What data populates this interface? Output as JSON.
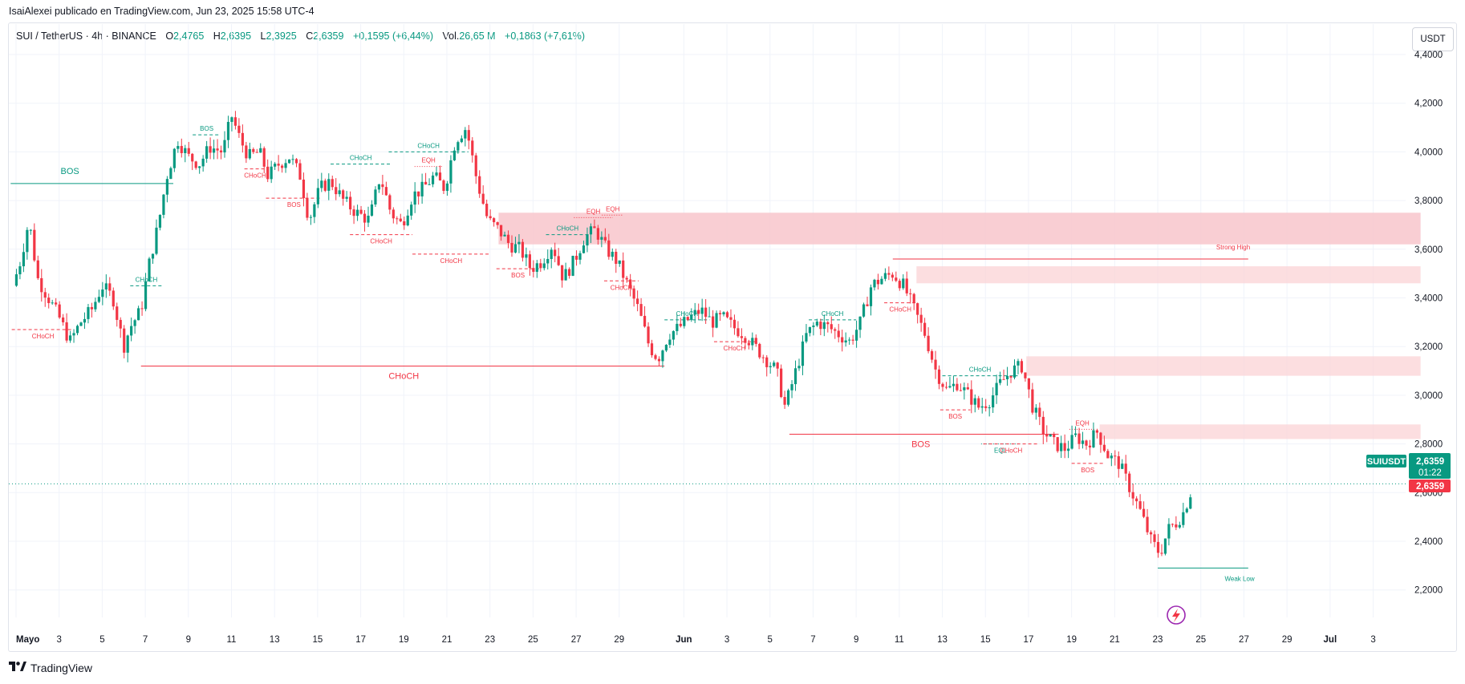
{
  "header": {
    "credit": "IsaiAlexei publicado en TradingView.com, Jun 23, 2025 15:58 UTC-4"
  },
  "legend": {
    "symbol": "SUI / TetherUS · 4h · BINANCE",
    "o_label": "O",
    "o_value": "2,4765",
    "h_label": "H",
    "h_value": "2,6395",
    "l_label": "L",
    "l_value": "2,3925",
    "c_label": "C",
    "c_value": "2,6359",
    "change": "+0,1595 (+6,44%)",
    "vol_label": "Vol.",
    "vol_value": "26,65 M",
    "vol_change": "+0,1863 (+7,61%)"
  },
  "currency_button": "USDT",
  "footer": {
    "brand": "TradingView",
    "logo_icon": "tradingview-logo-icon"
  },
  "colors": {
    "up": "#089981",
    "down": "#f23645",
    "zone": "#f8c6cb",
    "grid": "#f0f3fa"
  },
  "chart_data": {
    "type": "candlestick",
    "symbol": "SUIUSDT",
    "interval": "4h",
    "ylim": [
      2.1,
      4.45
    ],
    "y_ticks": [
      {
        "v": 4.4,
        "label": "4,4000"
      },
      {
        "v": 4.2,
        "label": "4,2000"
      },
      {
        "v": 4.0,
        "label": "4,0000"
      },
      {
        "v": 3.8,
        "label": "3,8000"
      },
      {
        "v": 3.6,
        "label": "3,6000"
      },
      {
        "v": 3.4,
        "label": "3,4000"
      },
      {
        "v": 3.2,
        "label": "3,2000"
      },
      {
        "v": 3.0,
        "label": "3,0000"
      },
      {
        "v": 2.8,
        "label": "2,8000"
      },
      {
        "v": 2.6,
        "label": "2,6000"
      },
      {
        "v": 2.4,
        "label": "2,4000"
      },
      {
        "v": 2.2,
        "label": "2,2000"
      }
    ],
    "x_ticks": [
      {
        "d": 1,
        "label": "Mayo",
        "bold": true
      },
      {
        "d": 3,
        "label": "3"
      },
      {
        "d": 5,
        "label": "5"
      },
      {
        "d": 7,
        "label": "7"
      },
      {
        "d": 9,
        "label": "9"
      },
      {
        "d": 11,
        "label": "11"
      },
      {
        "d": 13,
        "label": "13"
      },
      {
        "d": 15,
        "label": "15"
      },
      {
        "d": 17,
        "label": "17"
      },
      {
        "d": 19,
        "label": "19"
      },
      {
        "d": 21,
        "label": "21"
      },
      {
        "d": 23,
        "label": "23"
      },
      {
        "d": 25,
        "label": "25"
      },
      {
        "d": 27,
        "label": "27"
      },
      {
        "d": 29,
        "label": "29"
      },
      {
        "d": 32,
        "label": "Jun",
        "bold": true
      },
      {
        "d": 34,
        "label": "3"
      },
      {
        "d": 36,
        "label": "5"
      },
      {
        "d": 38,
        "label": "7"
      },
      {
        "d": 40,
        "label": "9"
      },
      {
        "d": 42,
        "label": "11"
      },
      {
        "d": 44,
        "label": "13"
      },
      {
        "d": 46,
        "label": "15"
      },
      {
        "d": 48,
        "label": "17"
      },
      {
        "d": 50,
        "label": "19"
      },
      {
        "d": 52,
        "label": "21"
      },
      {
        "d": 54,
        "label": "23"
      },
      {
        "d": 56,
        "label": "25"
      },
      {
        "d": 58,
        "label": "27"
      },
      {
        "d": 60,
        "label": "29"
      },
      {
        "d": 62,
        "label": "Jul",
        "bold": true
      },
      {
        "d": 64,
        "label": "3"
      }
    ],
    "price_path": [
      [
        0.85,
        3.45
      ],
      [
        1.2,
        3.55
      ],
      [
        1.6,
        3.72
      ],
      [
        2.0,
        3.48
      ],
      [
        2.5,
        3.4
      ],
      [
        3.0,
        3.32
      ],
      [
        3.5,
        3.22
      ],
      [
        4.0,
        3.3
      ],
      [
        4.5,
        3.35
      ],
      [
        5.0,
        3.45
      ],
      [
        5.5,
        3.4
      ],
      [
        6.0,
        3.2
      ],
      [
        6.3,
        3.28
      ],
      [
        6.8,
        3.35
      ],
      [
        7.2,
        3.55
      ],
      [
        7.6,
        3.7
      ],
      [
        8.0,
        3.9
      ],
      [
        8.5,
        4.05
      ],
      [
        9.0,
        3.98
      ],
      [
        9.5,
        3.95
      ],
      [
        10.0,
        4.02
      ],
      [
        10.6,
        4.0
      ],
      [
        11.0,
        4.15
      ],
      [
        11.4,
        4.05
      ],
      [
        11.8,
        3.98
      ],
      [
        12.3,
        4.0
      ],
      [
        12.7,
        3.9
      ],
      [
        13.2,
        3.95
      ],
      [
        13.7,
        3.98
      ],
      [
        14.2,
        3.9
      ],
      [
        14.6,
        3.72
      ],
      [
        15.1,
        3.85
      ],
      [
        15.6,
        3.88
      ],
      [
        16.2,
        3.8
      ],
      [
        16.8,
        3.75
      ],
      [
        17.4,
        3.72
      ],
      [
        17.9,
        3.9
      ],
      [
        18.4,
        3.75
      ],
      [
        18.9,
        3.7
      ],
      [
        19.4,
        3.82
      ],
      [
        19.9,
        3.85
      ],
      [
        20.4,
        3.9
      ],
      [
        20.9,
        3.85
      ],
      [
        21.4,
        4.05
      ],
      [
        21.9,
        4.1
      ],
      [
        22.4,
        3.88
      ],
      [
        22.9,
        3.72
      ],
      [
        23.4,
        3.68
      ],
      [
        23.9,
        3.62
      ],
      [
        24.4,
        3.6
      ],
      [
        24.9,
        3.52
      ],
      [
        25.4,
        3.55
      ],
      [
        25.9,
        3.62
      ],
      [
        26.4,
        3.48
      ],
      [
        26.9,
        3.55
      ],
      [
        27.4,
        3.65
      ],
      [
        27.9,
        3.68
      ],
      [
        28.4,
        3.6
      ],
      [
        28.9,
        3.55
      ],
      [
        29.4,
        3.45
      ],
      [
        29.9,
        3.35
      ],
      [
        30.4,
        3.2
      ],
      [
        30.8,
        3.15
      ],
      [
        31.3,
        3.25
      ],
      [
        31.8,
        3.28
      ],
      [
        32.3,
        3.32
      ],
      [
        32.8,
        3.35
      ],
      [
        33.3,
        3.3
      ],
      [
        33.8,
        3.32
      ],
      [
        34.3,
        3.28
      ],
      [
        34.8,
        3.25
      ],
      [
        35.3,
        3.2
      ],
      [
        35.8,
        3.15
      ],
      [
        36.3,
        3.1
      ],
      [
        36.7,
        2.95
      ],
      [
        37.2,
        3.1
      ],
      [
        37.7,
        3.25
      ],
      [
        38.2,
        3.3
      ],
      [
        38.7,
        3.28
      ],
      [
        39.2,
        3.25
      ],
      [
        39.7,
        3.22
      ],
      [
        40.2,
        3.3
      ],
      [
        40.7,
        3.45
      ],
      [
        41.2,
        3.48
      ],
      [
        41.7,
        3.5
      ],
      [
        42.2,
        3.45
      ],
      [
        42.7,
        3.35
      ],
      [
        43.2,
        3.25
      ],
      [
        43.7,
        3.1
      ],
      [
        44.2,
        3.02
      ],
      [
        44.7,
        3.05
      ],
      [
        45.2,
        3.0
      ],
      [
        45.7,
        2.95
      ],
      [
        46.2,
        2.98
      ],
      [
        46.7,
        3.05
      ],
      [
        47.2,
        3.1
      ],
      [
        47.7,
        3.12
      ],
      [
        48.2,
        2.95
      ],
      [
        48.7,
        2.85
      ],
      [
        49.2,
        2.8
      ],
      [
        49.7,
        2.78
      ],
      [
        50.2,
        2.83
      ],
      [
        50.7,
        2.8
      ],
      [
        51.2,
        2.85
      ],
      [
        51.7,
        2.75
      ],
      [
        52.2,
        2.72
      ],
      [
        52.7,
        2.62
      ],
      [
        53.2,
        2.52
      ],
      [
        53.7,
        2.4
      ],
      [
        54.1,
        2.35
      ],
      [
        54.5,
        2.45
      ],
      [
        54.9,
        2.48
      ],
      [
        55.2,
        2.52
      ],
      [
        55.6,
        2.62
      ]
    ],
    "zones": [
      {
        "x1": 23.4,
        "x2": 66.2,
        "y1": 3.62,
        "y2": 3.75
      },
      {
        "x1": 42.8,
        "x2": 66.2,
        "y1": 3.46,
        "y2": 3.53
      },
      {
        "x1": 47.9,
        "x2": 66.2,
        "y1": 3.08,
        "y2": 3.16
      },
      {
        "x1": 51.3,
        "x2": 66.2,
        "y1": 2.82,
        "y2": 2.88
      }
    ],
    "levels": [
      {
        "label": "BOS",
        "color": "#089981",
        "style": "solid",
        "x1": 0.75,
        "x2": 8.3,
        "y": 3.87,
        "label_x": 3.5,
        "label_pos": "above"
      },
      {
        "label": "CHoCH",
        "color": "#f23645",
        "style": "solid",
        "x1": 6.8,
        "x2": 31.1,
        "y": 3.12,
        "label_x": 19.0,
        "label_pos": "below"
      },
      {
        "label": "BOS",
        "color": "#f23645",
        "style": "solid",
        "x1": 36.9,
        "x2": 49.4,
        "y": 2.84,
        "label_x": 43.0,
        "label_pos": "below"
      },
      {
        "label": "Strong High",
        "color": "#f23645",
        "style": "solid",
        "x1": 41.7,
        "x2": 58.2,
        "y": 3.56,
        "label_x": 57.5,
        "label_pos": "above",
        "small": true
      },
      {
        "label": "Weak Low",
        "color": "#089981",
        "style": "solid",
        "x1": 54.0,
        "x2": 58.2,
        "y": 2.29,
        "label_x": 57.8,
        "label_pos": "below",
        "small": true
      }
    ],
    "small_marks": [
      {
        "label": "CHoCH",
        "color": "#f23645",
        "x1": 0.8,
        "x2": 3.7,
        "y": 3.27,
        "label_pos": "below"
      },
      {
        "label": "CHoCH",
        "color": "#089981",
        "x1": 6.3,
        "x2": 7.8,
        "y": 3.45,
        "label_pos": "above"
      },
      {
        "label": "BOS",
        "color": "#089981",
        "x1": 9.2,
        "x2": 10.5,
        "y": 4.07,
        "label_pos": "above"
      },
      {
        "label": "CHoCH",
        "color": "#f23645",
        "x1": 11.6,
        "x2": 12.6,
        "y": 3.93,
        "label_pos": "below"
      },
      {
        "label": "BOS",
        "color": "#f23645",
        "x1": 12.6,
        "x2": 15.2,
        "y": 3.81,
        "label_pos": "below"
      },
      {
        "label": "CHoCH",
        "color": "#089981",
        "x1": 15.6,
        "x2": 18.4,
        "y": 3.95,
        "label_pos": "above"
      },
      {
        "label": "CHoCH",
        "color": "#f23645",
        "x1": 16.5,
        "x2": 19.4,
        "y": 3.66,
        "label_pos": "below"
      },
      {
        "label": "CHoCH",
        "color": "#089981",
        "x1": 18.3,
        "x2": 22.0,
        "y": 4.0,
        "label_pos": "above"
      },
      {
        "label": "EQH",
        "color": "#f23645",
        "x1": 19.5,
        "x2": 20.8,
        "y": 3.94,
        "label_pos": "above",
        "dotted": true
      },
      {
        "label": "CHoCH",
        "color": "#f23645",
        "x1": 19.4,
        "x2": 23.0,
        "y": 3.58,
        "label_pos": "below"
      },
      {
        "label": "BOS",
        "color": "#f23645",
        "x1": 23.3,
        "x2": 25.3,
        "y": 3.52,
        "label_pos": "below"
      },
      {
        "label": "CHoCH",
        "color": "#089981",
        "x1": 25.6,
        "x2": 27.6,
        "y": 3.66,
        "label_pos": "above"
      },
      {
        "label": "EQH",
        "color": "#f23645",
        "x1": 26.9,
        "x2": 28.7,
        "y": 3.73,
        "label_pos": "above",
        "dotted": true
      },
      {
        "label": "EQH",
        "color": "#f23645",
        "x1": 28.2,
        "x2": 29.2,
        "y": 3.74,
        "label_pos": "above",
        "dotted": true
      },
      {
        "label": "CHoCH",
        "color": "#f23645",
        "x1": 28.3,
        "x2": 29.9,
        "y": 3.47,
        "label_pos": "below"
      },
      {
        "label": "CHoCH",
        "color": "#089981",
        "x1": 31.1,
        "x2": 33.2,
        "y": 3.31,
        "label_pos": "above"
      },
      {
        "label": "CHoCH",
        "color": "#f23645",
        "x1": 33.4,
        "x2": 35.3,
        "y": 3.22,
        "label_pos": "below"
      },
      {
        "label": "CHoCH",
        "color": "#089981",
        "x1": 37.8,
        "x2": 40.0,
        "y": 3.31,
        "label_pos": "above"
      },
      {
        "label": "CHoCH",
        "color": "#f23645",
        "x1": 41.3,
        "x2": 42.8,
        "y": 3.38,
        "label_pos": "below"
      },
      {
        "label": "CHoCH",
        "color": "#089981",
        "x1": 44.0,
        "x2": 47.5,
        "y": 3.08,
        "label_pos": "above"
      },
      {
        "label": "BOS",
        "color": "#f23645",
        "x1": 43.9,
        "x2": 45.3,
        "y": 2.94,
        "label_pos": "below"
      },
      {
        "label": "EQL",
        "color": "#089981",
        "x1": 45.8,
        "x2": 47.6,
        "y": 2.8,
        "label_pos": "below",
        "dotted": true
      },
      {
        "label": "CHoCH",
        "color": "#f23645",
        "x1": 45.9,
        "x2": 48.5,
        "y": 2.8,
        "label_pos": "below"
      },
      {
        "label": "EQH",
        "color": "#f23645",
        "x1": 49.9,
        "x2": 51.1,
        "y": 2.86,
        "label_pos": "above",
        "dotted": true
      },
      {
        "label": "BOS",
        "color": "#f23645",
        "x1": 50.0,
        "x2": 51.5,
        "y": 2.72,
        "label_pos": "below"
      }
    ],
    "last_price_line": 2.6359,
    "labels": {
      "symbol_tag": "SUIUSDT",
      "price": "2,6359",
      "countdown": "01:22",
      "price2": "2,6359"
    }
  }
}
